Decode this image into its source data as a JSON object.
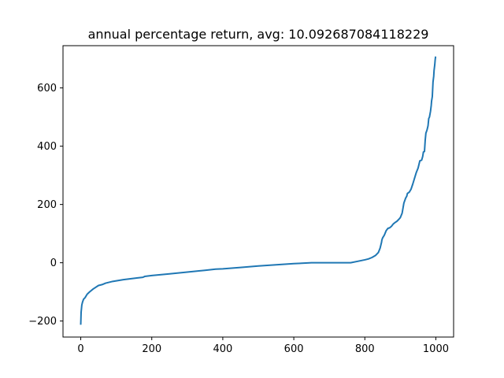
{
  "chart_data": {
    "type": "line",
    "title": "annual percentage return, avg: 10.092687084118229",
    "xlabel": "",
    "ylabel": "",
    "xlim": [
      -50,
      1050
    ],
    "ylim": [
      -255,
      745
    ],
    "x_ticks": [
      0,
      200,
      400,
      600,
      800,
      1000
    ],
    "y_ticks": [
      -200,
      0,
      200,
      400,
      600
    ],
    "grid": false,
    "line_color": "#1f77b4",
    "series": [
      {
        "x": [
          0,
          1,
          3,
          5,
          8,
          12,
          18,
          25,
          35,
          50,
          60,
          70,
          80,
          90,
          100,
          120,
          140,
          160,
          175,
          180,
          200,
          250,
          300,
          350,
          380,
          400,
          450,
          500,
          550,
          600,
          650,
          665,
          700,
          760,
          780,
          800,
          810,
          820,
          830,
          838,
          843,
          847,
          848,
          850,
          855,
          860,
          865,
          870,
          875,
          880,
          885,
          890,
          895,
          900,
          905,
          910,
          915,
          918,
          920,
          925,
          930,
          935,
          940,
          945,
          950,
          955,
          960,
          963,
          965,
          968,
          970,
          972,
          975,
          978,
          980,
          982,
          985,
          987,
          988,
          990,
          992,
          994,
          995,
          997,
          998,
          999
        ],
        "y": [
          -210,
          -170,
          -145,
          -135,
          -125,
          -120,
          -108,
          -100,
          -90,
          -78,
          -75,
          -70,
          -67,
          -64,
          -62,
          -58,
          -55,
          -52,
          -50,
          -47,
          -44,
          -38,
          -32,
          -26,
          -22,
          -21,
          -16,
          -11,
          -7,
          -3,
          0,
          0,
          0,
          0,
          5,
          10,
          13,
          18,
          25,
          35,
          50,
          70,
          78,
          85,
          95,
          110,
          118,
          120,
          125,
          133,
          138,
          142,
          148,
          155,
          170,
          205,
          222,
          228,
          238,
          242,
          252,
          270,
          290,
          310,
          325,
          350,
          352,
          365,
          380,
          382,
          420,
          445,
          455,
          470,
          495,
          500,
          520,
          540,
          555,
          570,
          620,
          640,
          660,
          680,
          695,
          705
        ]
      }
    ]
  }
}
